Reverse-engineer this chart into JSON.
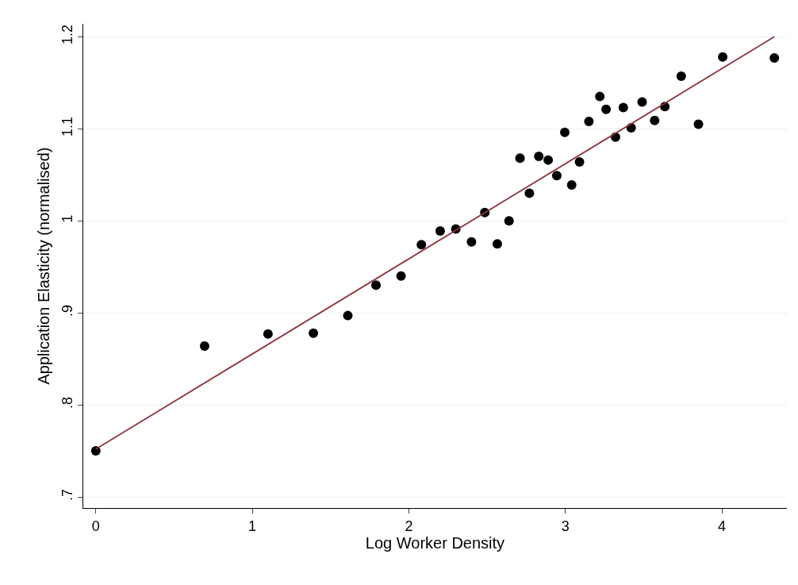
{
  "chart_data": {
    "type": "scatter",
    "xlabel": "Log Worker Density",
    "ylabel": "Application Elasticity (normalised)",
    "x": [
      0,
      0.695,
      1.1,
      1.39,
      1.61,
      1.79,
      1.95,
      2.08,
      2.2,
      2.3,
      2.4,
      2.485,
      2.565,
      2.64,
      2.71,
      2.77,
      2.83,
      2.89,
      2.945,
      2.996,
      3.04,
      3.09,
      3.15,
      3.22,
      3.26,
      3.32,
      3.37,
      3.42,
      3.49,
      3.57,
      3.635,
      3.74,
      3.85,
      4.005,
      4.335
    ],
    "series": [
      {
        "color": "#000000",
        "marker": "circle",
        "values": [
          0.75,
          0.864,
          0.877,
          0.878,
          0.897,
          0.93,
          0.94,
          0.974,
          0.989,
          0.991,
          0.977,
          1.009,
          0.975,
          1.0,
          1.068,
          1.03,
          1.07,
          1.066,
          1.049,
          1.096,
          1.039,
          1.064,
          1.108,
          1.135,
          1.121,
          1.091,
          1.123,
          1.101,
          1.129,
          1.109,
          1.124,
          1.157,
          1.105,
          1.178,
          1.177
        ]
      },
      {
        "type": "line",
        "color": "#90353b",
        "line_style": "solid",
        "marker": "none",
        "x": [
          0,
          4.335
        ],
        "values": [
          0.752,
          1.2
        ]
      }
    ],
    "xlim": [
      -0.08,
      4.415
    ],
    "xticks": [
      0,
      1,
      2,
      3,
      4
    ],
    "ylim": [
      0.688,
      1.214
    ],
    "yticks": [
      {
        "value": 0.7,
        "label": ".7"
      },
      {
        "value": 0.8,
        "label": ".8"
      },
      {
        "value": 0.9,
        "label": ".9"
      },
      1,
      1.1,
      1.2
    ],
    "grid": "y"
  }
}
